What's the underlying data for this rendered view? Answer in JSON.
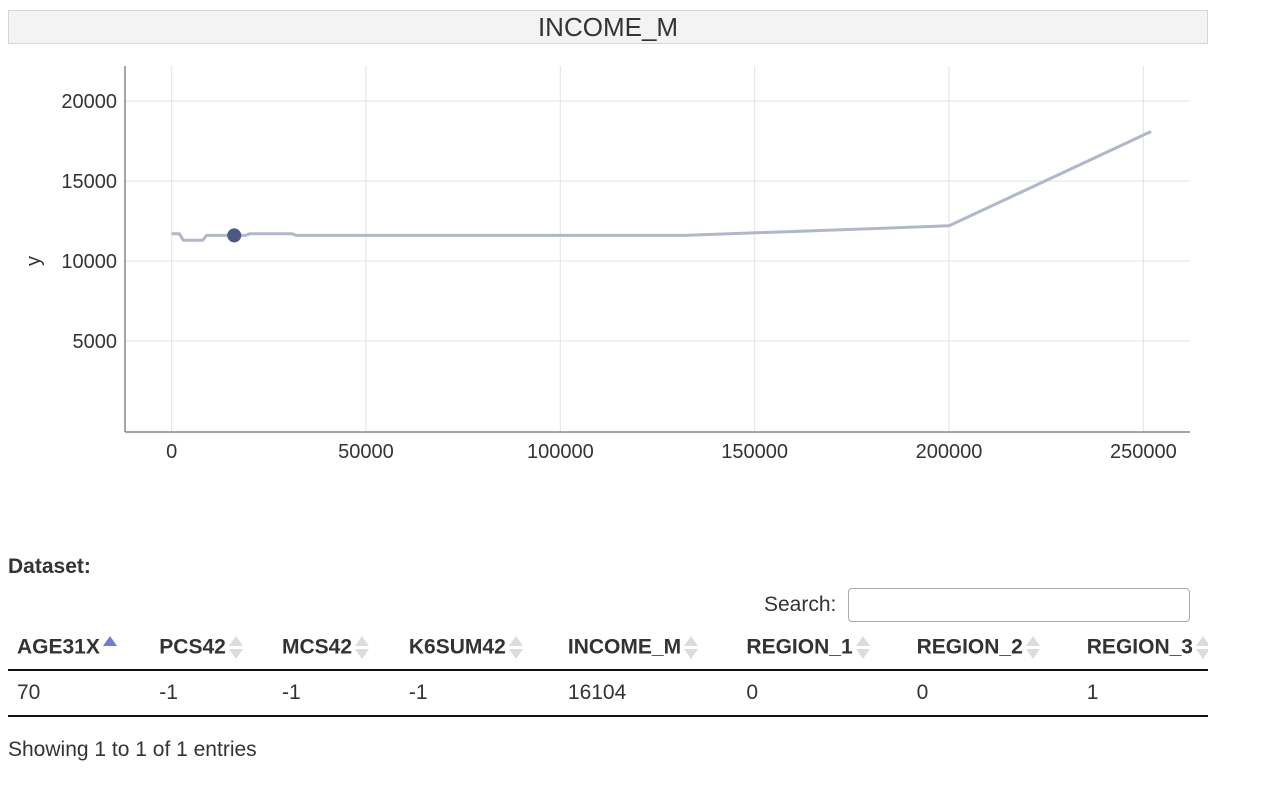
{
  "chart_title": "INCOME_M",
  "chart_data": {
    "type": "line",
    "title": "INCOME_M",
    "xlabel": "",
    "ylabel": "y",
    "xlim": [
      -12000,
      262000
    ],
    "ylim": [
      -700,
      22200
    ],
    "x_ticks": [
      "0",
      "50000",
      "100000",
      "150000",
      "200000",
      "250000"
    ],
    "y_ticks": [
      "5000",
      "10000",
      "15000",
      "20000"
    ],
    "grid": true,
    "series": [
      {
        "x": [
          0,
          2000,
          3000,
          8000,
          9000,
          19000,
          20000,
          31000,
          32000,
          132000,
          200000,
          252000
        ],
        "y": [
          11700,
          11700,
          11300,
          11300,
          11600,
          11600,
          11700,
          11700,
          11600,
          11600,
          12200,
          18100
        ],
        "color": "#b0b7c8"
      }
    ],
    "highlight_point": {
      "x": 16104,
      "y": 11600,
      "color": "#4a5a85"
    }
  },
  "dataset_label": "Dataset:",
  "search": {
    "label": "Search:",
    "value": "",
    "placeholder": ""
  },
  "table": {
    "columns": [
      "AGE31X",
      "PCS42",
      "MCS42",
      "K6SUM42",
      "INCOME_M",
      "REGION_1",
      "REGION_2",
      "REGION_3"
    ],
    "rows": [
      [
        "70",
        "-1",
        "-1",
        "-1",
        "16104",
        "0",
        "0",
        "1"
      ]
    ],
    "sorted_column": "AGE31X"
  },
  "info_text": "Showing 1 to 1 of 1 entries"
}
